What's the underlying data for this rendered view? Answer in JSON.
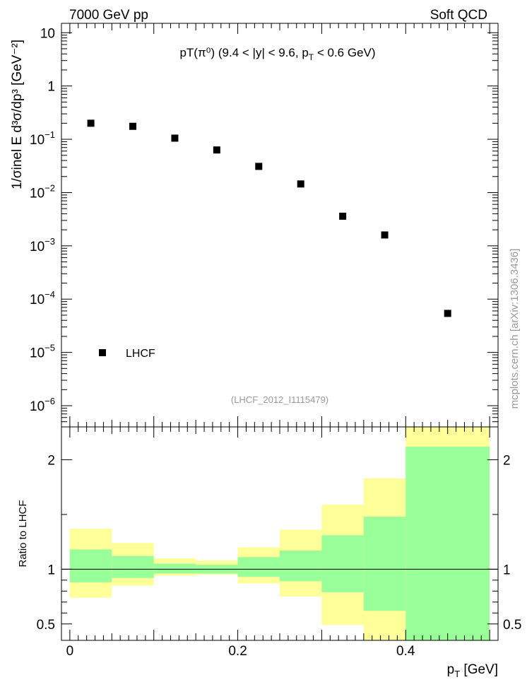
{
  "header": {
    "left": "7000 GeV pp",
    "right": "Soft QCD"
  },
  "side_label": "mcplots.cern.ch [arXiv:1306.3436]",
  "chart_data": [
    {
      "type": "scatter",
      "title_main": "pT(π⁰) (9.4 < |y| < 9.6, p",
      "title_sub": "T",
      "title_tail": " < 0.6 GeV)",
      "ylabel": "1/σinel E d³σ/dp³ [GeV⁻²]",
      "yscale": "log",
      "ylim": [
        4e-07,
        15
      ],
      "xlim": [
        -0.01,
        0.51
      ],
      "yticks": [
        {
          "value": 10,
          "base": "10",
          "exp": ""
        },
        {
          "value": 1,
          "base": "1",
          "exp": ""
        },
        {
          "value": 0.1,
          "base": "10",
          "exp": "−1"
        },
        {
          "value": 0.01,
          "base": "10",
          "exp": "−2"
        },
        {
          "value": 0.001,
          "base": "10",
          "exp": "−3"
        },
        {
          "value": 0.0001,
          "base": "10",
          "exp": "−4"
        },
        {
          "value": 1e-05,
          "base": "10",
          "exp": "−5"
        },
        {
          "value": 1e-06,
          "base": "10",
          "exp": "−6"
        }
      ],
      "series": [
        {
          "name": "LHCF",
          "x": [
            0.025,
            0.075,
            0.125,
            0.175,
            0.225,
            0.275,
            0.325,
            0.375,
            0.45
          ],
          "y": [
            0.2,
            0.175,
            0.105,
            0.063,
            0.031,
            0.0145,
            0.0036,
            0.0016,
            5.4e-05
          ]
        }
      ],
      "legend": "LHCF",
      "annotation": "(LHCF_2012_I1115479)"
    },
    {
      "type": "area",
      "ylabel": "Ratio to LHCF",
      "xlabel_main": "p",
      "xlabel_sub": "T",
      "xlabel_tail": " [GeV]",
      "ylim": [
        0.35,
        2.3
      ],
      "xlim": [
        -0.01,
        0.51
      ],
      "xticks": [
        {
          "value": 0,
          "label": "0"
        },
        {
          "value": 0.2,
          "label": "0.2"
        },
        {
          "value": 0.4,
          "label": "0.4"
        }
      ],
      "yticks": [
        {
          "value": 2,
          "label": "2"
        },
        {
          "value": 1,
          "label": "1"
        },
        {
          "value": 0.5,
          "label": "0.5"
        }
      ],
      "reference_line": 1,
      "bins": [
        {
          "lo": 0.0,
          "hi": 0.05,
          "stat_lo": 0.88,
          "stat_hi": 1.18,
          "total_lo": 0.74,
          "total_hi": 1.37
        },
        {
          "lo": 0.05,
          "hi": 0.1,
          "stat_lo": 0.92,
          "stat_hi": 1.12,
          "total_lo": 0.85,
          "total_hi": 1.24
        },
        {
          "lo": 0.1,
          "hi": 0.15,
          "stat_lo": 0.96,
          "stat_hi": 1.05,
          "total_lo": 0.94,
          "total_hi": 1.1
        },
        {
          "lo": 0.15,
          "hi": 0.2,
          "stat_lo": 0.96,
          "stat_hi": 1.04,
          "total_lo": 0.95,
          "total_hi": 1.08
        },
        {
          "lo": 0.2,
          "hi": 0.25,
          "stat_lo": 0.93,
          "stat_hi": 1.11,
          "total_lo": 0.87,
          "total_hi": 1.2
        },
        {
          "lo": 0.25,
          "hi": 0.3,
          "stat_lo": 0.89,
          "stat_hi": 1.17,
          "total_lo": 0.75,
          "total_hi": 1.36
        },
        {
          "lo": 0.3,
          "hi": 0.35,
          "stat_lo": 0.79,
          "stat_hi": 1.31,
          "total_lo": 0.49,
          "total_hi": 1.59
        },
        {
          "lo": 0.35,
          "hi": 0.4,
          "stat_lo": 0.62,
          "stat_hi": 1.48,
          "total_lo": 0.35,
          "total_hi": 1.83
        },
        {
          "lo": 0.4,
          "hi": 0.5,
          "stat_lo": 0.35,
          "stat_hi": 2.12,
          "total_lo": 0.35,
          "total_hi": 2.3
        }
      ],
      "colors": {
        "stat": "#99ff99",
        "total": "#ffff99"
      }
    }
  ]
}
